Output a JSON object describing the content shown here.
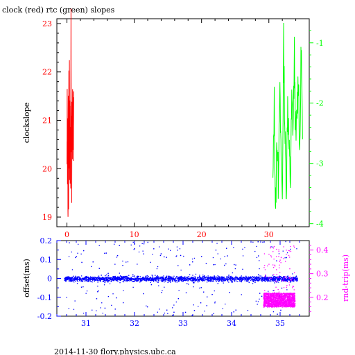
{
  "title": "clock (red) rtc (green) slopes",
  "footer": "2014-11-30 flory.physics.ubc.ca",
  "colors": {
    "clock": "#ff0000",
    "rtc": "#00ff00",
    "offset": "#0000ff",
    "roundtrip": "#ff00ff",
    "axis": "#000000"
  },
  "chart_data": [
    {
      "type": "line",
      "ylabel": "clockslope",
      "xlim": [
        -1.5,
        36
      ],
      "x_ticks": [
        "0",
        "10",
        "20",
        "30"
      ],
      "x_tick_values": [
        0,
        10,
        20,
        30
      ],
      "ylim": [
        18.8,
        23.1
      ],
      "y_ticks": [
        "19",
        "20",
        "21",
        "22",
        "23"
      ],
      "y_tick_values": [
        19,
        20,
        21,
        22,
        23
      ],
      "y2lim": [
        -4.05,
        -0.6
      ],
      "y2_ticks": [
        "-1",
        "-2",
        "-3",
        "-4"
      ],
      "y2_tick_values": [
        -1,
        -2,
        -3,
        -4
      ],
      "series": [
        {
          "color": "red",
          "axis": "left",
          "x": [
            0.0,
            0.04,
            0.08,
            0.12,
            0.16,
            0.2,
            0.24,
            0.28,
            0.32,
            0.36,
            0.4,
            0.44,
            0.48,
            0.52,
            0.56,
            0.6,
            0.64,
            0.68,
            0.72,
            0.76,
            0.8,
            0.84,
            0.88,
            0.92,
            0.96,
            1.0
          ],
          "y": [
            20.1,
            21.7,
            19.6,
            20.9,
            18.85,
            21.8,
            19.5,
            22.1,
            20.3,
            22.2,
            19.9,
            21.4,
            19.6,
            21.1,
            20.0,
            22.9,
            20.4,
            21.3,
            19.5,
            21.0,
            20.2,
            21.9,
            20.6,
            21.4,
            20.2,
            21.6
          ]
        },
        {
          "color": "green",
          "axis": "right",
          "x": [
            30.6,
            30.8,
            31.0,
            31.2,
            31.4,
            31.6,
            31.8,
            32.0,
            32.2,
            32.4,
            32.6,
            32.8,
            33.0,
            33.2,
            33.4,
            33.6,
            33.8,
            34.0,
            34.2,
            34.4,
            34.6,
            34.8,
            35.0
          ],
          "y": [
            -3.4,
            -2.0,
            -3.95,
            -2.5,
            -3.3,
            -1.7,
            -2.9,
            -3.6,
            -1.0,
            -2.6,
            -3.4,
            -1.9,
            -2.8,
            -3.3,
            -2.0,
            -2.4,
            -1.2,
            -2.7,
            -2.1,
            -1.5,
            -3.0,
            -0.95,
            -2.6
          ]
        }
      ]
    },
    {
      "type": "scatter",
      "ylabel": "offset(ms)",
      "y2label": "rnd-trip(ms)",
      "xlim": [
        30.4,
        35.6
      ],
      "x_ticks": [
        "31",
        "32",
        "33",
        "34",
        "35"
      ],
      "x_tick_values": [
        31,
        32,
        33,
        34,
        35
      ],
      "ylim": [
        -0.2,
        0.2
      ],
      "y_ticks": [
        "0.2",
        "0.1",
        "0",
        "-0.1",
        "-0.2"
      ],
      "y_tick_values": [
        0.2,
        0.1,
        0,
        -0.1,
        -0.2
      ],
      "y2lim": [
        0.12,
        0.44
      ],
      "y2_ticks": [
        "0.4",
        "0.3",
        "0.2"
      ],
      "y2_tick_values": [
        0.4,
        0.3,
        0.2
      ],
      "series": [
        {
          "color": "blue",
          "axis": "left",
          "x_range": [
            30.55,
            35.35
          ],
          "y_center": 0.0,
          "y_core_halfwidth": 0.02,
          "y_outlier_range": [
            -0.2,
            0.2
          ]
        },
        {
          "color": "magenta",
          "axis": "right",
          "x_range": [
            34.65,
            35.3
          ],
          "y_core_range": [
            0.16,
            0.22
          ],
          "y_outlier_range": [
            0.2,
            0.42
          ]
        }
      ]
    }
  ]
}
